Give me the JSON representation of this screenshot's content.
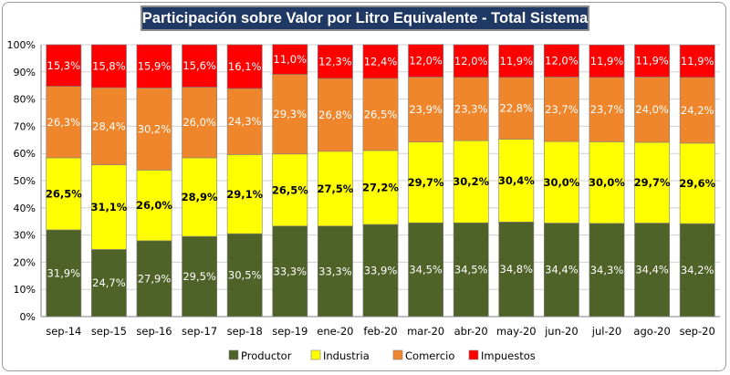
{
  "title": "Participación sobre Valor por Litro Equivalente - Total Sistema",
  "chart_data": {
    "type": "bar",
    "stacked": true,
    "title": "Participación sobre Valor por Litro Equivalente - Total Sistema",
    "categories": [
      "sep-14",
      "sep-15",
      "sep-16",
      "sep-17",
      "sep-18",
      "sep-19",
      "ene-20",
      "feb-20",
      "mar-20",
      "abr-20",
      "may-20",
      "jun-20",
      "jul-20",
      "ago-20",
      "sep-20"
    ],
    "ylim": [
      0,
      100
    ],
    "yticks": [
      "0%",
      "10%",
      "20%",
      "30%",
      "40%",
      "50%",
      "60%",
      "70%",
      "80%",
      "90%",
      "100%"
    ],
    "grid": true,
    "legend_position": "bottom",
    "series": [
      {
        "name": "Productor",
        "color": "#4f6228",
        "label_color": "#ffffff",
        "values": [
          31.9,
          24.7,
          27.9,
          29.5,
          30.5,
          33.3,
          33.3,
          33.9,
          34.5,
          34.5,
          34.8,
          34.4,
          34.3,
          34.4,
          34.2
        ],
        "labels": [
          "31,9%",
          "24,7%",
          "27,9%",
          "29,5%",
          "30,5%",
          "33,3%",
          "33,3%",
          "33,9%",
          "34,5%",
          "34,5%",
          "34,8%",
          "34,4%",
          "34,3%",
          "34,4%",
          "34,2%"
        ]
      },
      {
        "name": "Industria",
        "color": "#ffff00",
        "label_color": "#000000",
        "values": [
          26.5,
          31.1,
          26.0,
          28.9,
          29.1,
          26.5,
          27.5,
          27.2,
          29.7,
          30.2,
          30.4,
          30.0,
          30.0,
          29.7,
          29.6
        ],
        "labels": [
          "26,5%",
          "31,1%",
          "26,0%",
          "28,9%",
          "29,1%",
          "26,5%",
          "27,5%",
          "27,2%",
          "29,7%",
          "30,2%",
          "30,4%",
          "30,0%",
          "30,0%",
          "29,7%",
          "29,6%"
        ]
      },
      {
        "name": "Comercio",
        "color": "#f0862c",
        "label_color": "#ffffff",
        "values": [
          26.3,
          28.4,
          30.2,
          26.0,
          24.3,
          29.3,
          26.8,
          26.5,
          23.9,
          23.3,
          22.8,
          23.7,
          23.7,
          24.0,
          24.2
        ],
        "labels": [
          "26,3%",
          "28,4%",
          "30,2%",
          "26,0%",
          "24,3%",
          "29,3%",
          "26,8%",
          "26,5%",
          "23,9%",
          "23,3%",
          "22,8%",
          "23,7%",
          "23,7%",
          "24,0%",
          "24,2%"
        ]
      },
      {
        "name": "Impuestos",
        "color": "#ff0000",
        "label_color": "#ffffff",
        "values": [
          15.3,
          15.8,
          15.9,
          15.6,
          16.1,
          11.0,
          12.3,
          12.4,
          12.0,
          12.0,
          11.9,
          12.0,
          11.9,
          11.9,
          11.9
        ],
        "labels": [
          "15,3%",
          "15,8%",
          "15,9%",
          "15,6%",
          "16,1%",
          "11,0%",
          "12,3%",
          "12,4%",
          "12,0%",
          "12,0%",
          "11,9%",
          "12,0%",
          "11,9%",
          "11,9%",
          "11,9%"
        ]
      }
    ]
  }
}
